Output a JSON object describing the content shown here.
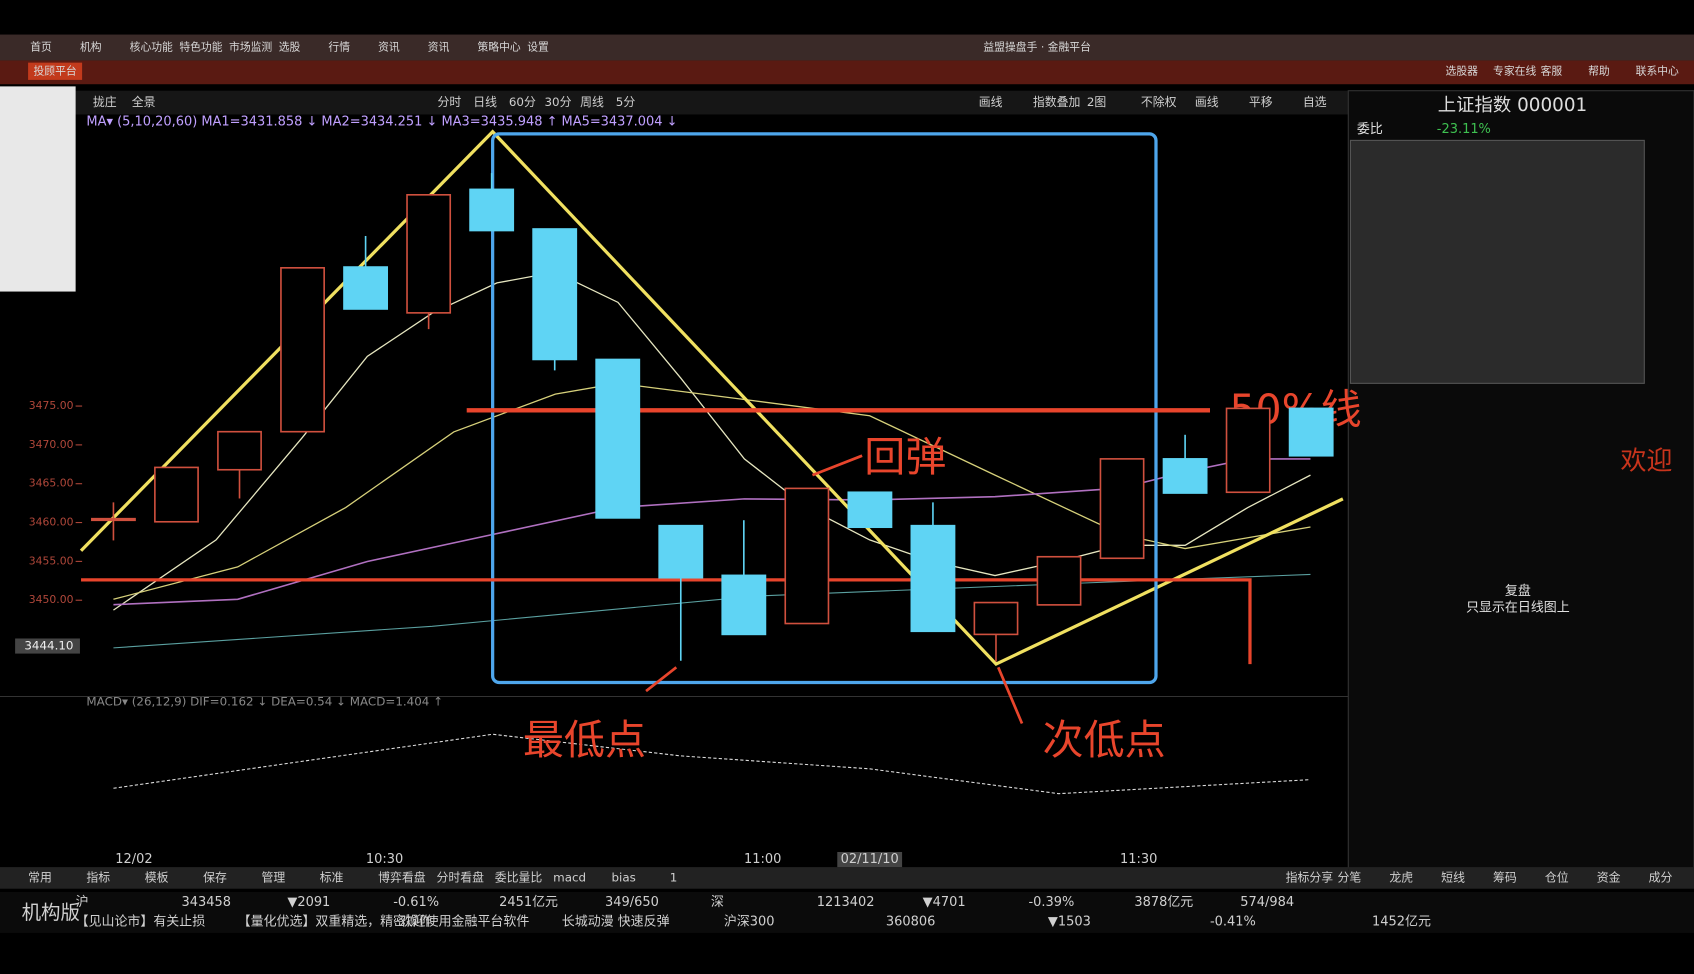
{
  "window_title": "益盟操盘手 · 金融平台",
  "menu": [
    "首页",
    "机构",
    "核心功能",
    "特色功能",
    "市场监测",
    "选股",
    "行情",
    "资讯",
    "资讯",
    "策略中心",
    "设置"
  ],
  "sub_tab": "投顾平台",
  "top_right": [
    "选股器",
    "专家在线",
    "客服",
    "帮助",
    "联系中心"
  ],
  "toolbar": {
    "left": [
      "拢庄",
      "全景"
    ],
    "periods": [
      "分时",
      "日线",
      "60分",
      "30分",
      "周线",
      "5分"
    ],
    "right": [
      "画线",
      "指数叠加",
      "2图",
      "不除权",
      "画线",
      "平移",
      "自选"
    ]
  },
  "ma_legend": "MA▾ (5,10,20,60) MA1=3431.858 ↓ MA2=3434.251 ↓ MA3=3435.948 ↑ MA5=3437.004 ↓",
  "chart": {
    "ylim": [
      3438.3,
      3510.6
    ],
    "yticks": [
      {
        "value": 3475,
        "label": "3475.00"
      },
      {
        "value": 3470,
        "label": "3470.00"
      },
      {
        "value": 3465,
        "label": "3465.00"
      },
      {
        "value": 3460,
        "label": "3460.00"
      },
      {
        "value": 3455,
        "label": "3455.00"
      },
      {
        "value": 3450,
        "label": "3450.00"
      }
    ],
    "last_price": {
      "value": 3444.1,
      "label": "3444.10"
    },
    "candles": [
      {
        "open": 3460.4,
        "high": 3462.6,
        "low": 3457.7,
        "close": 3460.5
      },
      {
        "open": 3460.1,
        "high": 3467.1,
        "low": 3460.1,
        "close": 3467.1
      },
      {
        "open": 3466.8,
        "high": 3471.7,
        "low": 3463.1,
        "close": 3471.7
      },
      {
        "open": 3471.7,
        "high": 3492.8,
        "low": 3471.7,
        "close": 3492.8
      },
      {
        "open": 3492.9,
        "high": 3496.9,
        "low": 3487.5,
        "close": 3487.5
      },
      {
        "open": 3487.0,
        "high": 3502.2,
        "low": 3484.9,
        "close": 3502.2
      },
      {
        "open": 3502.9,
        "high": 3505.0,
        "low": 3497.6,
        "close": 3497.6
      },
      {
        "open": 3497.8,
        "high": 3497.8,
        "low": 3479.6,
        "close": 3481.0
      },
      {
        "open": 3481.0,
        "high": 3481.0,
        "low": 3460.6,
        "close": 3460.6
      },
      {
        "open": 3459.6,
        "high": 3459.6,
        "low": 3442.2,
        "close": 3452.9
      },
      {
        "open": 3453.2,
        "high": 3460.3,
        "low": 3445.6,
        "close": 3445.6
      },
      {
        "open": 3447.0,
        "high": 3464.4,
        "low": 3447.0,
        "close": 3464.4
      },
      {
        "open": 3463.9,
        "high": 3463.9,
        "low": 3459.4,
        "close": 3459.4
      },
      {
        "open": 3459.6,
        "high": 3462.6,
        "low": 3446.0,
        "close": 3446.0
      },
      {
        "open": 3445.6,
        "high": 3449.7,
        "low": 3442.1,
        "close": 3449.7
      },
      {
        "open": 3449.4,
        "high": 3455.6,
        "low": 3449.4,
        "close": 3455.6
      },
      {
        "open": 3455.4,
        "high": 3468.2,
        "low": 3455.4,
        "close": 3468.2
      },
      {
        "open": 3468.2,
        "high": 3471.3,
        "low": 3463.8,
        "close": 3463.8
      },
      {
        "open": 3463.9,
        "high": 3474.7,
        "low": 3463.9,
        "close": 3474.7
      },
      {
        "open": 3474.7,
        "high": 3474.7,
        "low": 3468.6,
        "close": 3468.6
      }
    ],
    "x_labels": [
      "12/02",
      "10:30",
      "11:00",
      "02/11/10",
      "11:30"
    ]
  },
  "macd_legend": "MACD▾ (26,12,9) DIF=0.162 ↓ DEA=0.54 ↓ MACD=1.404 ↑",
  "annotations": {
    "half_line": "50%线",
    "rebound": "回弹",
    "lowest": "最低点",
    "second_lowest": "次低点"
  },
  "right_panel": {
    "title": "上证指数 000001",
    "label": "委比",
    "value": "-23.11%",
    "note_title": "复盘",
    "note": "只显示在日线图上",
    "welcome": "欢迎"
  },
  "bottom_tabs": [
    "常用",
    "指标",
    "模板",
    "保存",
    "管理",
    "标准",
    "博弈看盘",
    "分时看盘",
    "委比量比",
    "macd",
    "bias",
    "1"
  ],
  "right_tabs": [
    "指标分享",
    "分笔",
    "龙虎",
    "短线",
    "筹码",
    "仓位",
    "资金",
    "成分"
  ],
  "ticker": [
    "沪",
    "343458",
    "▼2091",
    "-0.61%",
    "2451亿元",
    "349/650",
    "深",
    "1213402",
    "▼4701",
    "-0.39%",
    "3878亿元",
    "574/984"
  ],
  "news": [
    "【见山论市】有关止损",
    "【量化优选】双重精选，精密操作",
    "欢迎使用金融平台软件",
    "长城动漫 快速反弹",
    "沪深300",
    "360806",
    "▼1503",
    "-0.41%",
    "1452亿元"
  ],
  "corner_label": "机构版"
}
